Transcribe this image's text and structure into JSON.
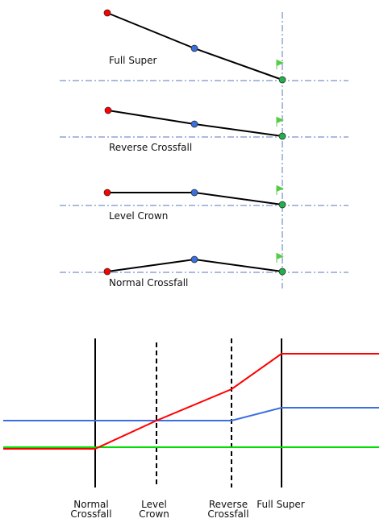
{
  "sections": [
    {
      "label": "Full Super"
    },
    {
      "label": "Reverse Crossfall"
    },
    {
      "label": "Level Crown"
    },
    {
      "label": "Normal Crossfall"
    }
  ],
  "transition_labels": [
    {
      "lines": [
        "Normal",
        "Crossfall"
      ]
    },
    {
      "lines": [
        "Level",
        "Crown"
      ]
    },
    {
      "lines": [
        "Reverse",
        "Crossfall"
      ]
    },
    {
      "lines": [
        "Full Super"
      ]
    }
  ],
  "colors": {
    "left_edge": "#ff0000",
    "crown": "#3a6fe0",
    "right_edge": "#00dd00",
    "pivot_point": "#22b04a",
    "flag": "#55cc44",
    "reference_line": "#5577bb",
    "section_line": "#000000",
    "transition_line": "#000000"
  },
  "chart_data": {
    "type": "line",
    "categories": [
      "Normal Crossfall",
      "Level Crown",
      "Reverse Crossfall",
      "Full Super"
    ],
    "series": [
      {
        "color": "#ff0000",
        "values": [
          -2,
          0,
          2,
          4
        ]
      },
      {
        "color": "#3a6fe0",
        "values": [
          0,
          0,
          0,
          1
        ]
      },
      {
        "color": "#00dd00",
        "values": [
          -1.5,
          -1.5,
          -1.5,
          -1.5
        ]
      }
    ]
  }
}
